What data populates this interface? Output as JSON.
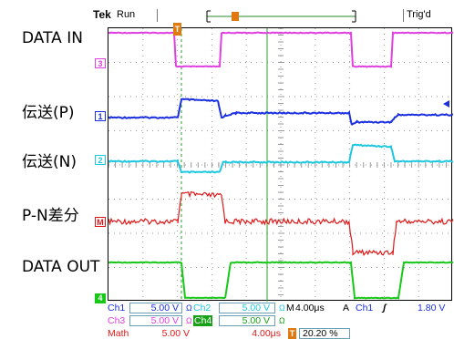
{
  "top_bar": {
    "brand": "Tek",
    "run_state": "Run",
    "trigger_status": "Trig'd"
  },
  "trigger_position_marker": "T",
  "channel_labels": [
    {
      "text": "DATA IN",
      "color": "#e040e0",
      "marker": "3"
    },
    {
      "text": "伝送(P)",
      "color": "#1a2fe0",
      "marker": "1"
    },
    {
      "text": "伝送(N)",
      "color": "#1ec8e0",
      "marker": "2"
    },
    {
      "text": "P-N差分",
      "color": "#e01818",
      "marker": "M"
    },
    {
      "text": "DATA OUT",
      "color": "#18c818",
      "marker": "4"
    }
  ],
  "readout": {
    "ch1": {
      "label": "Ch1",
      "value": "5.00 V",
      "coupling": "Ω"
    },
    "ch2": {
      "label": "Ch2",
      "value": "5.00 V",
      "coupling": "Ω"
    },
    "ch3": {
      "label": "Ch3",
      "value": "5.00 V",
      "coupling": "Ω"
    },
    "ch4": {
      "label": "Ch4",
      "value": "5.00 V",
      "coupling": "Ω"
    },
    "math": {
      "label": "Math",
      "value": "5.00 V",
      "time": "4.00μs"
    },
    "timebase": {
      "prefix": "M",
      "value": "4.00μs"
    },
    "trigger": {
      "mode": "A",
      "source": "Ch1",
      "slope": "ʃ",
      "level": "1.80 V"
    },
    "trigger_position": {
      "icon": "T",
      "value": "20.20 %"
    }
  },
  "colors": {
    "ch1": "#1a2fe0",
    "ch2": "#1ec8e0",
    "ch3": "#e040e0",
    "ch4": "#18c818",
    "math": "#e01818",
    "grid": "#9a9a9a",
    "trigger": "#e07a10"
  }
}
